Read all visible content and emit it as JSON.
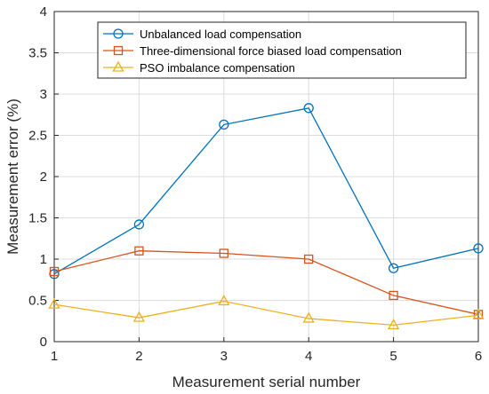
{
  "chart_data": {
    "type": "line",
    "title": "",
    "xlabel": "Measurement serial number",
    "ylabel": "Measurement error (%)",
    "x": [
      1,
      2,
      3,
      4,
      5,
      6
    ],
    "xlim": [
      1,
      6
    ],
    "ylim": [
      0,
      4
    ],
    "xticks": [
      "1",
      "2",
      "3",
      "4",
      "5",
      "6"
    ],
    "yticks": [
      "0",
      "0.5",
      "1",
      "1.5",
      "2",
      "2.5",
      "3",
      "3.5",
      "4"
    ],
    "grid": true,
    "legend_position": "top-right",
    "series": [
      {
        "name": "Unbalanced load compensation",
        "values": [
          0.82,
          1.42,
          2.63,
          2.83,
          0.89,
          1.13
        ],
        "color": "#0072BD",
        "marker": "circle"
      },
      {
        "name": "Three-dimensional force biased load compensation",
        "values": [
          0.85,
          1.1,
          1.07,
          1.0,
          0.56,
          0.33
        ],
        "color": "#D95319",
        "marker": "square"
      },
      {
        "name": "PSO  imbalance compensation",
        "values": [
          0.45,
          0.29,
          0.49,
          0.28,
          0.2,
          0.32
        ],
        "color": "#EDB120",
        "marker": "triangle"
      }
    ]
  }
}
